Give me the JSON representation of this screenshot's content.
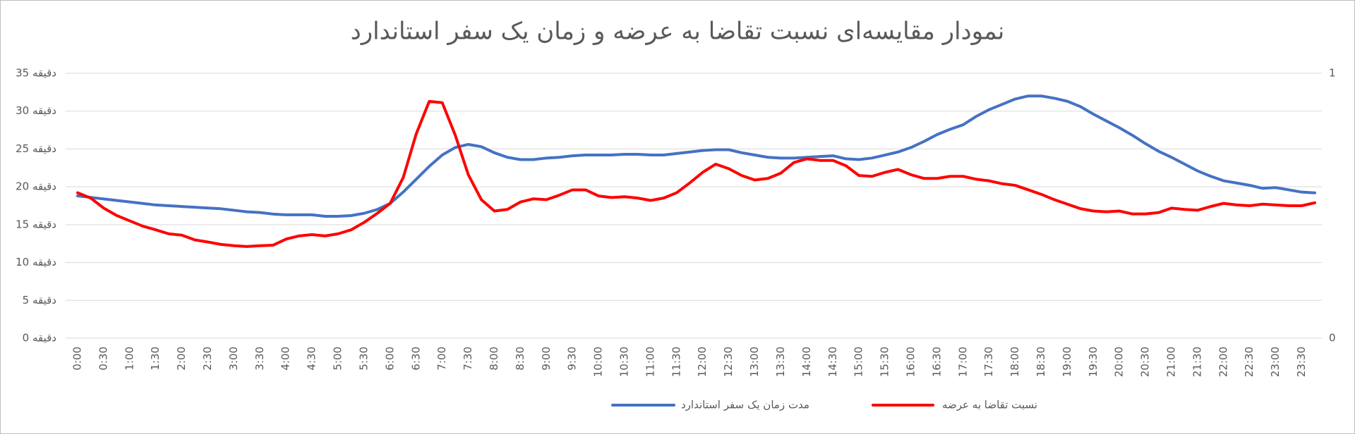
{
  "chart_data": {
    "type": "line",
    "title": "نمودار مقایسه‌ای نسبت تقاضا به عرضه و زمان یک سفر استاندارد",
    "categories": [
      "0:00",
      null,
      "0:30",
      null,
      "1:00",
      null,
      "1:30",
      null,
      "2:00",
      null,
      "2:30",
      null,
      "3:00",
      null,
      "3:30",
      null,
      "4:00",
      null,
      "4:30",
      null,
      "5:00",
      null,
      "5:30",
      null,
      "6:00",
      null,
      "6:30",
      null,
      "7:00",
      null,
      "7:30",
      null,
      "8:00",
      null,
      "8:30",
      null,
      "9:00",
      null,
      "9:30",
      null,
      "10:00",
      null,
      "10:30",
      null,
      "11:00",
      null,
      "11:30",
      null,
      "12:00",
      null,
      "12:30",
      null,
      "13:00",
      null,
      "13:30",
      null,
      "14:00",
      null,
      "14:30",
      null,
      "15:00",
      null,
      "15:30",
      null,
      "16:00",
      null,
      "16:30",
      null,
      "17:00",
      null,
      "17:30",
      null,
      "18:00",
      null,
      "18:30",
      null,
      "19:00",
      null,
      "19:30",
      null,
      "20:00",
      null,
      "20:30",
      null,
      "21:00",
      null,
      "21:30",
      null,
      "22:00",
      null,
      "22:30",
      null,
      "23:00",
      null,
      "23:30",
      null
    ],
    "series": [
      {
        "name": "مدت زمان یک سفر استاندارد",
        "color": "#4472c4",
        "values": [
          18.8,
          18.6,
          18.4,
          18.2,
          18.0,
          17.8,
          17.6,
          17.5,
          17.4,
          17.3,
          17.2,
          17.1,
          16.9,
          16.7,
          16.6,
          16.4,
          16.3,
          16.3,
          16.3,
          16.1,
          16.1,
          16.2,
          16.5,
          17.0,
          17.8,
          19.3,
          21.0,
          22.7,
          24.2,
          25.2,
          25.6,
          25.3,
          24.5,
          23.9,
          23.6,
          23.6,
          23.8,
          23.9,
          24.1,
          24.2,
          24.2,
          24.2,
          24.3,
          24.3,
          24.2,
          24.2,
          24.4,
          24.6,
          24.8,
          24.9,
          24.9,
          24.5,
          24.2,
          23.9,
          23.8,
          23.8,
          23.9,
          24.0,
          24.1,
          23.7,
          23.6,
          23.8,
          24.2,
          24.6,
          25.2,
          26.0,
          26.9,
          27.6,
          28.2,
          29.3,
          30.2,
          30.9,
          31.6,
          32.0,
          32.0,
          31.7,
          31.3,
          30.6,
          29.6,
          28.7,
          27.8,
          26.8,
          25.7,
          24.7,
          23.9,
          23.0,
          22.1,
          21.4,
          20.8,
          20.5,
          20.2,
          19.8,
          19.9,
          19.6,
          19.3,
          19.2
        ]
      },
      {
        "name": "نسبت تقاضا به عرضه",
        "color": "#ff0000",
        "axis": "y2",
        "values": [
          0.549,
          0.529,
          0.491,
          0.463,
          0.443,
          0.423,
          0.409,
          0.394,
          0.389,
          0.371,
          0.363,
          0.354,
          0.349,
          0.346,
          0.349,
          0.351,
          0.374,
          0.386,
          0.391,
          0.386,
          0.394,
          0.409,
          0.437,
          0.471,
          0.509,
          0.606,
          0.771,
          0.894,
          0.889,
          0.766,
          0.617,
          0.523,
          0.48,
          0.486,
          0.514,
          0.526,
          0.523,
          0.54,
          0.56,
          0.56,
          0.537,
          0.531,
          0.534,
          0.529,
          0.52,
          0.529,
          0.549,
          0.586,
          0.626,
          0.657,
          0.64,
          0.614,
          0.597,
          0.603,
          0.623,
          0.663,
          0.677,
          0.671,
          0.671,
          0.651,
          0.614,
          0.611,
          0.626,
          0.637,
          0.617,
          0.603,
          0.603,
          0.611,
          0.611,
          0.6,
          0.594,
          0.583,
          0.577,
          0.56,
          0.543,
          0.523,
          0.506,
          0.489,
          0.48,
          0.477,
          0.48,
          0.469,
          0.469,
          0.474,
          0.491,
          0.486,
          0.483,
          0.497,
          0.509,
          0.503,
          0.5,
          0.506,
          0.503,
          0.5,
          0.5,
          0.511
        ]
      }
    ],
    "ylim": [
      0,
      35
    ],
    "yticks": [
      {
        "value": 0,
        "label": "0 دقیقه"
      },
      {
        "value": 5,
        "label": "5 دقیقه"
      },
      {
        "value": 10,
        "label": "10 دقیقه"
      },
      {
        "value": 15,
        "label": "15 دقیقه"
      },
      {
        "value": 20,
        "label": "20 دقیقه"
      },
      {
        "value": 25,
        "label": "25 دقیقه"
      },
      {
        "value": 30,
        "label": "30 دقیقه"
      },
      {
        "value": 35,
        "label": "35 دقیقه"
      }
    ],
    "y2lim": [
      0,
      1
    ],
    "y2ticks": [
      0,
      1
    ],
    "grid": true,
    "legend": "bottom"
  }
}
